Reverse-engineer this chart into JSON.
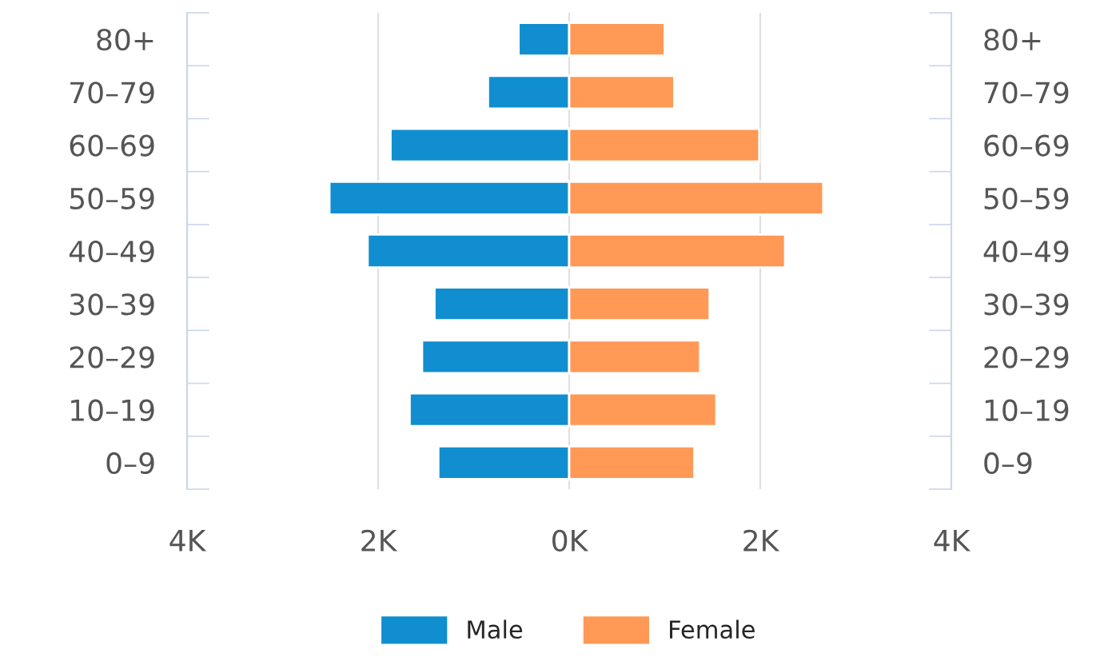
{
  "chart_data": {
    "type": "bar",
    "orientation": "horizontal",
    "stacked": true,
    "categories": [
      "80+",
      "70–79",
      "60–69",
      "50–59",
      "40–49",
      "30–39",
      "20–29",
      "10–19",
      "0–9"
    ],
    "series": [
      {
        "name": "Male",
        "color": "#108ecf",
        "values": [
          -530,
          -850,
          -1870,
          -2510,
          -2110,
          -1410,
          -1540,
          -1670,
          -1370
        ]
      },
      {
        "name": "Female",
        "color": "#ff9955",
        "values": [
          1000,
          1100,
          1990,
          2660,
          2260,
          1470,
          1370,
          1540,
          1310
        ]
      }
    ],
    "xlim": [
      -4000,
      4000
    ],
    "xticks": [
      {
        "value": -4000,
        "label": "4K"
      },
      {
        "value": -2000,
        "label": "2K"
      },
      {
        "value": 0,
        "label": "0K"
      },
      {
        "value": 2000,
        "label": "2K"
      },
      {
        "value": 4000,
        "label": "4K"
      }
    ],
    "grid": "x",
    "legend": "bottom"
  }
}
